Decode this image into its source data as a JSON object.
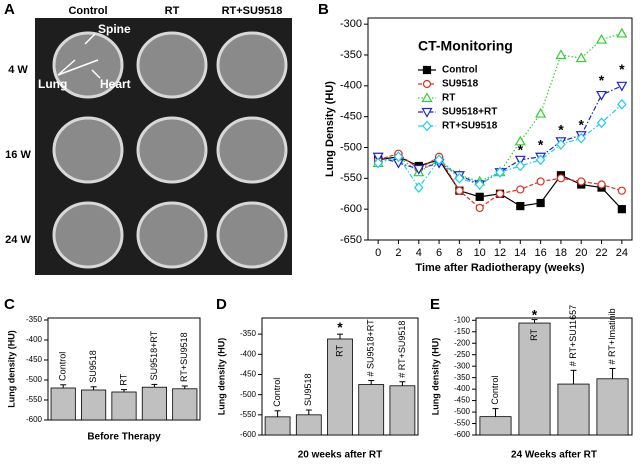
{
  "figure_a": {
    "letter": "A",
    "columns": [
      "Control",
      "RT",
      "RT+SU9518"
    ],
    "rows": [
      "4 W",
      "16 W",
      "24 W"
    ],
    "annotations": [
      "Spine",
      "Lung",
      "Heart"
    ]
  },
  "chart_data": [
    {
      "type": "line",
      "letter": "B",
      "title": "CT-Monitoring",
      "xlabel": "Time after Radiotherapy (weeks)",
      "ylabel": "Lung Density (HU)",
      "x": [
        0,
        2,
        4,
        6,
        8,
        10,
        12,
        14,
        16,
        18,
        20,
        22,
        24
      ],
      "xlim": [
        -1,
        25
      ],
      "xticks": [
        0,
        2,
        4,
        6,
        8,
        10,
        12,
        14,
        16,
        18,
        20,
        22,
        24
      ],
      "ylim": [
        -650,
        -290
      ],
      "yticks": [
        -650,
        -600,
        -550,
        -500,
        -450,
        -400,
        -350,
        -300
      ],
      "series": [
        {
          "name": "Control",
          "color": "#000000",
          "marker": "square",
          "filled": true,
          "linestyle": "solid",
          "values": [
            -520,
            -515,
            -530,
            -520,
            -570,
            -580,
            -575,
            -595,
            -590,
            -545,
            -560,
            -565,
            -600
          ]
        },
        {
          "name": "SU9518",
          "color": "#e03020",
          "marker": "circle",
          "filled": false,
          "linestyle": "dashed",
          "values": [
            -520,
            -510,
            -535,
            -515,
            -570,
            -598,
            -575,
            -568,
            -555,
            -550,
            -555,
            -560,
            -570
          ]
        },
        {
          "name": "RT",
          "color": "#33cc33",
          "marker": "triangle",
          "filled": false,
          "linestyle": "dotted",
          "values": [
            -525,
            -515,
            -540,
            -520,
            -545,
            -555,
            -540,
            -490,
            -445,
            -350,
            -355,
            -325,
            -315
          ]
        },
        {
          "name": "SU9518+RT",
          "color": "#2222cc",
          "marker": "triangle-down",
          "filled": false,
          "linestyle": "dashdot",
          "values": [
            -515,
            -525,
            -535,
            -525,
            -545,
            -560,
            -540,
            -520,
            -515,
            -490,
            -480,
            -415,
            -400
          ]
        },
        {
          "name": "RT+SU9518",
          "color": "#22ccee",
          "marker": "diamond",
          "filled": false,
          "linestyle": "dashdot",
          "values": [
            -525,
            -515,
            -565,
            -520,
            -550,
            -560,
            -540,
            -530,
            -520,
            -495,
            -485,
            -460,
            -430
          ]
        }
      ],
      "annotations": [
        {
          "x": 14,
          "y": -505,
          "text": "*"
        },
        {
          "x": 16,
          "y": -497,
          "text": "*"
        },
        {
          "x": 18,
          "y": -473,
          "text": "*"
        },
        {
          "x": 20,
          "y": -465,
          "text": "*"
        },
        {
          "x": 22,
          "y": -393,
          "text": "*"
        },
        {
          "x": 24,
          "y": -375,
          "text": "*"
        }
      ]
    },
    {
      "type": "bar",
      "letter": "C",
      "xlabel": "Before Therapy",
      "ylabel": "Lung density (HU)",
      "color": "#c0c0c0",
      "categories": [
        "Control",
        "SU9518",
        "RT",
        "SU9518+RT",
        "RT+SU9518"
      ],
      "values": [
        -520,
        -525,
        -530,
        -518,
        -522
      ],
      "errors": [
        8,
        8,
        6,
        7,
        7
      ],
      "ylim": [
        -600,
        -345
      ],
      "yticks": [
        -600,
        -550,
        -500,
        -450,
        -400,
        -350
      ]
    },
    {
      "type": "bar",
      "letter": "D",
      "xlabel": "20 weeks after RT",
      "ylabel": "Lung density (HU)",
      "color": "#c0c0c0",
      "categories": [
        "Control",
        "SU9518",
        "RT",
        "# SU9518+RT",
        "# RT+SU9518"
      ],
      "values": [
        -555,
        -550,
        -362,
        -475,
        -478
      ],
      "errors": [
        15,
        12,
        12,
        10,
        10
      ],
      "ylim": [
        -600,
        -310
      ],
      "yticks": [
        -600,
        -550,
        -500,
        -450,
        -400,
        -350
      ],
      "annotations": [
        {
          "x": "RT",
          "y": -335,
          "text": "*"
        }
      ]
    },
    {
      "type": "bar",
      "letter": "E",
      "xlabel": "24 Weeks after RT",
      "ylabel": "Lung density (HU)",
      "color": "#c0c0c0",
      "categories": [
        "Control",
        "RT",
        "# RT+SU11657",
        "# RT+Imatinib"
      ],
      "values": [
        -520,
        -112,
        -378,
        -355
      ],
      "errors": [
        35,
        15,
        60,
        45
      ],
      "ylim": [
        -600,
        -90
      ],
      "yticks": [
        -600,
        -550,
        -500,
        -450,
        -400,
        -350,
        -300,
        -250,
        -200,
        -150,
        -100
      ],
      "annotations": [
        {
          "x": "RT",
          "y": -80,
          "text": "*"
        }
      ]
    }
  ]
}
